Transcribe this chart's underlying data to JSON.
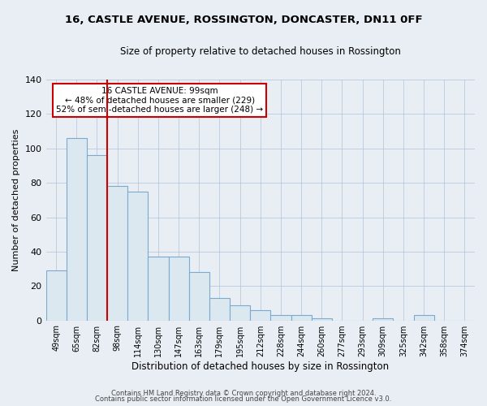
{
  "title": "16, CASTLE AVENUE, ROSSINGTON, DONCASTER, DN11 0FF",
  "subtitle": "Size of property relative to detached houses in Rossington",
  "xlabel": "Distribution of detached houses by size in Rossington",
  "ylabel": "Number of detached properties",
  "bar_color": "#dce8f0",
  "bar_edge_color": "#7aaacf",
  "categories": [
    "49sqm",
    "65sqm",
    "82sqm",
    "98sqm",
    "114sqm",
    "130sqm",
    "147sqm",
    "163sqm",
    "179sqm",
    "195sqm",
    "212sqm",
    "228sqm",
    "244sqm",
    "260sqm",
    "277sqm",
    "293sqm",
    "309sqm",
    "325sqm",
    "342sqm",
    "358sqm",
    "374sqm"
  ],
  "values": [
    29,
    106,
    96,
    78,
    75,
    37,
    37,
    28,
    13,
    9,
    6,
    3,
    3,
    1,
    0,
    0,
    1,
    0,
    3,
    0,
    0
  ],
  "ylim": [
    0,
    140
  ],
  "yticks": [
    0,
    20,
    40,
    60,
    80,
    100,
    120,
    140
  ],
  "vline_idx": 3,
  "vline_color": "#cc0000",
  "annotation_title": "16 CASTLE AVENUE: 99sqm",
  "annotation_line1": "← 48% of detached houses are smaller (229)",
  "annotation_line2": "52% of semi-detached houses are larger (248) →",
  "annotation_box_color": "#ffffff",
  "annotation_box_edge": "#cc0000",
  "footer1": "Contains HM Land Registry data © Crown copyright and database right 2024.",
  "footer2": "Contains public sector information licensed under the Open Government Licence v3.0.",
  "bg_color": "#e8eef4"
}
